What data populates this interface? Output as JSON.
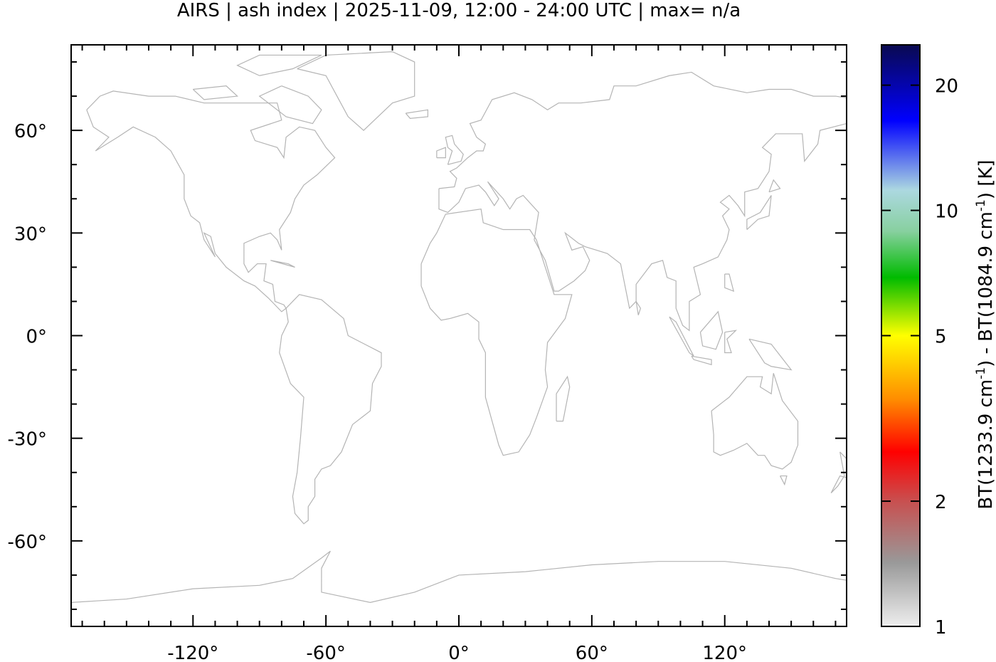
{
  "title": "AIRS | ash index | 2025-11-09, 12:00 - 24:00 UTC | max= n/a",
  "map": {
    "projection": "equirectangular",
    "lon_range": [
      -175,
      175
    ],
    "lat_range": [
      -85,
      85
    ],
    "coastline_color": "#b4b4b4",
    "x_ticks": [
      -120,
      -60,
      0,
      60,
      120
    ],
    "x_tick_labels": [
      "-120°",
      "-60°",
      "0°",
      "60°",
      "120°"
    ],
    "y_ticks": [
      60,
      30,
      0,
      -30,
      -60
    ],
    "y_tick_labels": [
      "60°",
      "30°",
      "0°",
      "-30°",
      "-60°"
    ],
    "data_present": false
  },
  "colorbar": {
    "scale": "log",
    "range": [
      1,
      25
    ],
    "ticks": [
      1,
      2,
      5,
      10,
      20
    ],
    "tick_labels": [
      "1",
      "2",
      "5",
      "10",
      "20"
    ],
    "label_parts": [
      "BT(1233.9 cm",
      "-1",
      ") - BT(1084.9 cm",
      "-1",
      ") [K]"
    ],
    "colors": [
      "#eeeeee",
      "#999999",
      "#c85050",
      "#ff0000",
      "#ff8c00",
      "#ffff00",
      "#00bb00",
      "#88d0a0",
      "#acd8e0",
      "#0000ff",
      "#0a0a50"
    ]
  }
}
